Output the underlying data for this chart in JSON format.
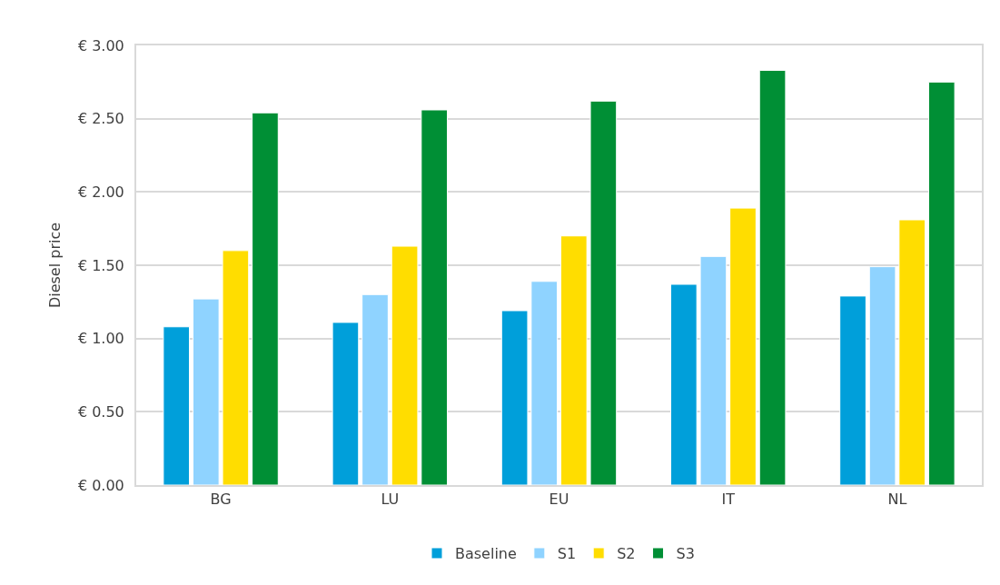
{
  "chart_data": {
    "type": "bar",
    "ylabel": "Diesel price",
    "categories": [
      "BG",
      "LU",
      "EU",
      "IT",
      "NL"
    ],
    "series": [
      {
        "name": "Baseline",
        "color": "#009fda",
        "values": [
          1.08,
          1.11,
          1.19,
          1.37,
          1.29
        ]
      },
      {
        "name": "S1",
        "color": "#8fd3ff",
        "values": [
          1.27,
          1.3,
          1.39,
          1.56,
          1.49
        ]
      },
      {
        "name": "S2",
        "color": "#ffdd00",
        "values": [
          1.6,
          1.63,
          1.7,
          1.89,
          1.81
        ]
      },
      {
        "name": "S3",
        "color": "#008f35",
        "values": [
          2.54,
          2.56,
          2.62,
          2.83,
          2.75
        ]
      }
    ],
    "ylim": [
      0,
      3
    ],
    "yticks": [
      {
        "value": 0,
        "label": "€ 0.00"
      },
      {
        "value": 0.5,
        "label": "€ 0.50"
      },
      {
        "value": 1,
        "label": "€ 1.00"
      },
      {
        "value": 1.5,
        "label": "€ 1.50"
      },
      {
        "value": 2,
        "label": "€ 2.00"
      },
      {
        "value": 2.5,
        "label": "€ 2.50"
      },
      {
        "value": 3,
        "label": "€ 3.00"
      }
    ],
    "grid": "y",
    "legend": "bottom"
  }
}
